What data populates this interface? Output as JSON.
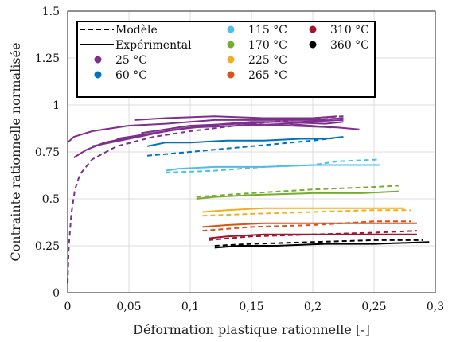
{
  "chart_data": {
    "type": "line",
    "xlabel": "Déformation plastique rationnelle [-]",
    "ylabel": "Contrainte rationnelle normalisée",
    "xlim": [
      0,
      0.3
    ],
    "ylim": [
      0,
      1.5
    ],
    "grid": true,
    "legend_position": "top-left",
    "x_ticks": [
      "0",
      "0,05",
      "0,1",
      "0,15",
      "0,2",
      "0,25",
      "0,3"
    ],
    "y_ticks": [
      "0",
      "0.25",
      "0.5",
      "0.75",
      "1",
      "1.25",
      "1.5"
    ],
    "line_style_legend": [
      {
        "label": "Modèle",
        "style": "dashed"
      },
      {
        "label": "Expérimental",
        "style": "solid"
      }
    ],
    "series": [
      {
        "name": "25 °C",
        "color": "#7E2F8E",
        "model": [
          [
            0,
            0.05
          ],
          [
            0.001,
            0.25
          ],
          [
            0.003,
            0.42
          ],
          [
            0.006,
            0.55
          ],
          [
            0.01,
            0.63
          ],
          [
            0.02,
            0.71
          ],
          [
            0.04,
            0.78
          ],
          [
            0.07,
            0.83
          ],
          [
            0.1,
            0.86
          ],
          [
            0.15,
            0.9
          ],
          [
            0.2,
            0.93
          ],
          [
            0.225,
            0.94
          ]
        ],
        "experimental": [
          [
            [
              0,
              0.8
            ],
            [
              0.005,
              0.83
            ],
            [
              0.02,
              0.86
            ],
            [
              0.05,
              0.89
            ],
            [
              0.08,
              0.9
            ],
            [
              0.12,
              0.92
            ],
            [
              0.16,
              0.92
            ],
            [
              0.2,
              0.92
            ],
            [
              0.225,
              0.93
            ]
          ],
          [
            [
              0.005,
              0.72
            ],
            [
              0.015,
              0.76
            ],
            [
              0.03,
              0.8
            ],
            [
              0.06,
              0.84
            ],
            [
              0.09,
              0.87
            ],
            [
              0.13,
              0.9
            ],
            [
              0.17,
              0.91
            ],
            [
              0.21,
              0.9
            ],
            [
              0.225,
              0.91
            ]
          ],
          [
            [
              0.02,
              0.78
            ],
            [
              0.05,
              0.82
            ],
            [
              0.08,
              0.86
            ],
            [
              0.11,
              0.89
            ],
            [
              0.15,
              0.91
            ],
            [
              0.19,
              0.91
            ],
            [
              0.225,
              0.92
            ]
          ],
          [
            [
              0.04,
              0.82
            ],
            [
              0.07,
              0.85
            ],
            [
              0.1,
              0.88
            ],
            [
              0.14,
              0.89
            ],
            [
              0.18,
              0.9
            ],
            [
              0.215,
              0.88
            ]
          ],
          [
            [
              0.06,
              0.85
            ],
            [
              0.1,
              0.89
            ],
            [
              0.14,
              0.9
            ],
            [
              0.18,
              0.89
            ],
            [
              0.22,
              0.88
            ],
            [
              0.238,
              0.87
            ]
          ],
          [
            [
              0.055,
              0.92
            ],
            [
              0.08,
              0.93
            ],
            [
              0.12,
              0.94
            ],
            [
              0.16,
              0.93
            ],
            [
              0.2,
              0.93
            ],
            [
              0.22,
              0.94
            ]
          ]
        ]
      },
      {
        "name": "60 °C",
        "color": "#0072BD",
        "model": [
          [
            0.065,
            0.73
          ],
          [
            0.1,
            0.75
          ],
          [
            0.15,
            0.78
          ],
          [
            0.2,
            0.81
          ],
          [
            0.225,
            0.83
          ]
        ],
        "experimental": [
          [
            [
              0.065,
              0.78
            ],
            [
              0.08,
              0.8
            ],
            [
              0.1,
              0.8
            ],
            [
              0.13,
              0.81
            ],
            [
              0.16,
              0.81
            ],
            [
              0.19,
              0.82
            ],
            [
              0.21,
              0.82
            ],
            [
              0.225,
              0.83
            ]
          ]
        ]
      },
      {
        "name": "115 °C",
        "color": "#4DBEEE",
        "model": [
          [
            0.08,
            0.64
          ],
          [
            0.12,
            0.65
          ],
          [
            0.16,
            0.67
          ],
          [
            0.2,
            0.68
          ],
          [
            0.22,
            0.7
          ],
          [
            0.255,
            0.71
          ]
        ],
        "experimental": [
          [
            [
              0.08,
              0.65
            ],
            [
              0.09,
              0.66
            ],
            [
              0.12,
              0.67
            ],
            [
              0.16,
              0.67
            ],
            [
              0.2,
              0.68
            ],
            [
              0.235,
              0.68
            ],
            [
              0.255,
              0.68
            ]
          ]
        ]
      },
      {
        "name": "170 °C",
        "color": "#77AC30",
        "model": [
          [
            0.105,
            0.51
          ],
          [
            0.15,
            0.53
          ],
          [
            0.2,
            0.55
          ],
          [
            0.24,
            0.56
          ],
          [
            0.27,
            0.57
          ]
        ],
        "experimental": [
          [
            [
              0.105,
              0.5
            ],
            [
              0.12,
              0.51
            ],
            [
              0.15,
              0.52
            ],
            [
              0.2,
              0.53
            ],
            [
              0.24,
              0.53
            ],
            [
              0.27,
              0.54
            ]
          ]
        ]
      },
      {
        "name": "225 °C",
        "color": "#EDB120",
        "model": [
          [
            0.11,
            0.41
          ],
          [
            0.15,
            0.42
          ],
          [
            0.2,
            0.43
          ],
          [
            0.25,
            0.44
          ],
          [
            0.28,
            0.44
          ]
        ],
        "experimental": [
          [
            [
              0.11,
              0.43
            ],
            [
              0.13,
              0.44
            ],
            [
              0.16,
              0.45
            ],
            [
              0.2,
              0.45
            ],
            [
              0.24,
              0.45
            ],
            [
              0.275,
              0.45
            ]
          ]
        ]
      },
      {
        "name": "265 °C",
        "color": "#D95319",
        "model": [
          [
            0.11,
            0.33
          ],
          [
            0.15,
            0.35
          ],
          [
            0.2,
            0.36
          ],
          [
            0.25,
            0.38
          ],
          [
            0.28,
            0.38
          ]
        ],
        "experimental": [
          [
            [
              0.11,
              0.35
            ],
            [
              0.13,
              0.36
            ],
            [
              0.16,
              0.37
            ],
            [
              0.2,
              0.37
            ],
            [
              0.25,
              0.37
            ],
            [
              0.285,
              0.37
            ]
          ]
        ]
      },
      {
        "name": "310 °C",
        "color": "#A2142F",
        "model": [
          [
            0.115,
            0.28
          ],
          [
            0.15,
            0.3
          ],
          [
            0.2,
            0.31
          ],
          [
            0.25,
            0.32
          ],
          [
            0.285,
            0.33
          ]
        ],
        "experimental": [
          [
            [
              0.115,
              0.29
            ],
            [
              0.13,
              0.3
            ],
            [
              0.16,
              0.31
            ],
            [
              0.2,
              0.31
            ],
            [
              0.25,
              0.31
            ],
            [
              0.285,
              0.31
            ]
          ]
        ]
      },
      {
        "name": "360 °C",
        "color": "#000000",
        "model": [
          [
            0.12,
            0.25
          ],
          [
            0.15,
            0.26
          ],
          [
            0.2,
            0.27
          ],
          [
            0.25,
            0.28
          ],
          [
            0.29,
            0.28
          ]
        ],
        "experimental": [
          [
            [
              0.12,
              0.24
            ],
            [
              0.14,
              0.25
            ],
            [
              0.17,
              0.25
            ],
            [
              0.21,
              0.26
            ],
            [
              0.25,
              0.26
            ],
            [
              0.295,
              0.27
            ]
          ]
        ]
      }
    ]
  }
}
